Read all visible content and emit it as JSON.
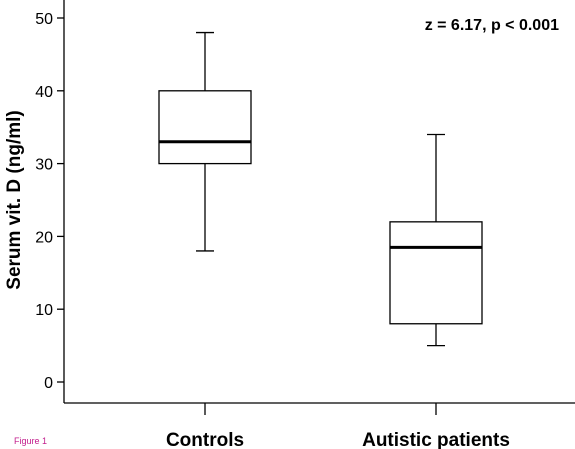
{
  "caption": "Figure 1",
  "chart_data": {
    "type": "box",
    "annotation": "z = 6.17, p < 0.001",
    "ylabel": "Serum vit. D (ng/ml)",
    "xlabel": "",
    "categories": [
      "Controls",
      "Autistic patients"
    ],
    "ylim": [
      -3,
      53
    ],
    "yticks": [
      0,
      10,
      20,
      30,
      40,
      50
    ],
    "boxes": [
      {
        "label": "Controls",
        "whisker_low": 18,
        "q1": 30,
        "median": 33,
        "q3": 40,
        "whisker_high": 48
      },
      {
        "label": "Autistic patients",
        "whisker_low": 5,
        "q1": 8,
        "median": 18.5,
        "q3": 22,
        "whisker_high": 34
      }
    ],
    "grid": false,
    "colors": {
      "box_fill": "#ffffff",
      "stroke": "#000000"
    }
  }
}
